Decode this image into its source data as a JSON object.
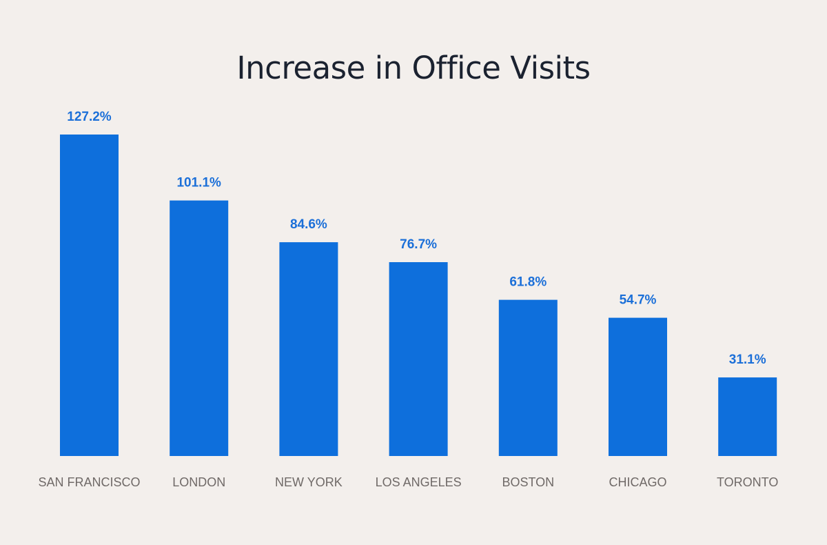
{
  "chart_data": {
    "type": "bar",
    "title": "Increase in Office Visits",
    "xlabel": "",
    "ylabel": "",
    "categories": [
      "SAN FRANCISCO",
      "LONDON",
      "NEW YORK",
      "LOS ANGELES",
      "BOSTON",
      "CHICAGO",
      "TORONTO"
    ],
    "values": [
      127.2,
      101.1,
      84.6,
      76.7,
      61.8,
      54.7,
      31.1
    ],
    "value_labels": [
      "127.2%",
      "101.1%",
      "84.6%",
      "76.7%",
      "61.8%",
      "54.7%",
      "31.1%"
    ],
    "ylim": [
      0,
      127.2
    ],
    "grid": false,
    "legend": "none",
    "colors": {
      "bar": "#0e6fdc",
      "value_label": "#1b6fd8",
      "category_label": "#6f6967",
      "title": "#1b2230",
      "background": "#f3efec"
    }
  }
}
